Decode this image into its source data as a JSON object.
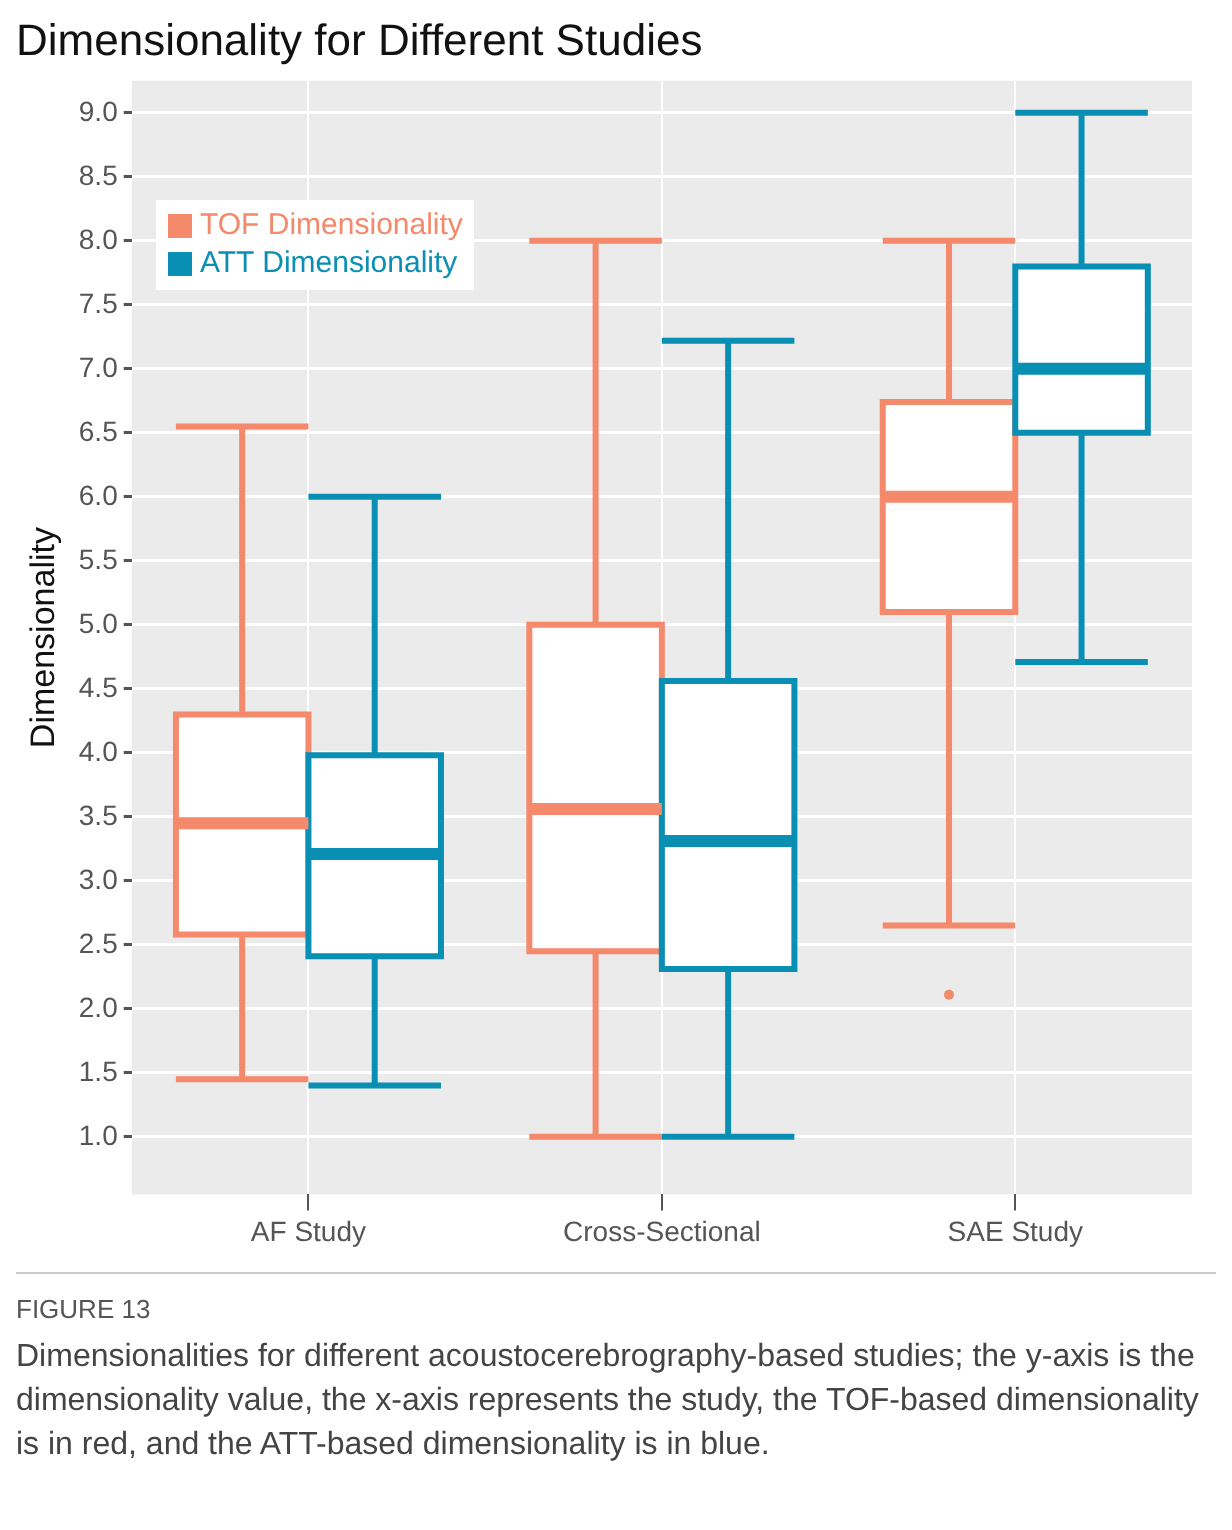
{
  "chart_data": {
    "type": "box",
    "title": "Dimensionality for Different Studies",
    "ylabel": "Dimensionality",
    "categories": [
      "AF Study",
      "Cross-Sectional",
      "SAE Study"
    ],
    "series": [
      {
        "name": "TOF Dimensionality",
        "color": "#f4896b",
        "boxes": [
          {
            "low": 1.45,
            "q1": 2.58,
            "median": 3.45,
            "q3": 4.3,
            "high": 6.55
          },
          {
            "low": 1.0,
            "q1": 2.45,
            "median": 3.56,
            "q3": 5.0,
            "high": 8.0
          },
          {
            "low": 2.65,
            "q1": 5.1,
            "median": 6.0,
            "q3": 6.74,
            "high": 8.0,
            "outliers": [
              2.11
            ]
          }
        ]
      },
      {
        "name": "ATT Dimensionality",
        "color": "#0a8fb4",
        "boxes": [
          {
            "low": 1.4,
            "q1": 2.41,
            "median": 3.21,
            "q3": 3.98,
            "high": 6.0
          },
          {
            "low": 1.0,
            "q1": 2.31,
            "median": 3.31,
            "q3": 4.56,
            "high": 7.22
          },
          {
            "low": 4.71,
            "q1": 6.5,
            "median": 7.0,
            "q3": 7.8,
            "high": 9.0
          }
        ]
      }
    ],
    "ylim": [
      0.55,
      9.25
    ],
    "yticks": [
      {
        "value": 1,
        "label": "1.0"
      },
      {
        "value": 1.5,
        "label": "1.5"
      },
      {
        "value": 2,
        "label": "2.0"
      },
      {
        "value": 2.5,
        "label": "2.5"
      },
      {
        "value": 3,
        "label": "3.0"
      },
      {
        "value": 3.5,
        "label": "3.5"
      },
      {
        "value": 4,
        "label": "4.0"
      },
      {
        "value": 4.5,
        "label": "4.5"
      },
      {
        "value": 5,
        "label": "5.0"
      },
      {
        "value": 5.5,
        "label": "5.5"
      },
      {
        "value": 6,
        "label": "6.0"
      },
      {
        "value": 6.5,
        "label": "6.5"
      },
      {
        "value": 7,
        "label": "7.0"
      },
      {
        "value": 7.5,
        "label": "7.5"
      },
      {
        "value": 8,
        "label": "8.0"
      },
      {
        "value": 8.5,
        "label": "8.5"
      },
      {
        "value": 9,
        "label": "9.0"
      }
    ],
    "grid": true,
    "legend": "top left",
    "annotations": [
      "FIGURE 13",
      "Dimensionalities for different acoustocerebrography-based studies; the y-axis is the dimensionality value, the x-axis represents the study, the TOF-based dimensionality is in red, and the ATT-based dimensionality is in blue."
    ]
  }
}
